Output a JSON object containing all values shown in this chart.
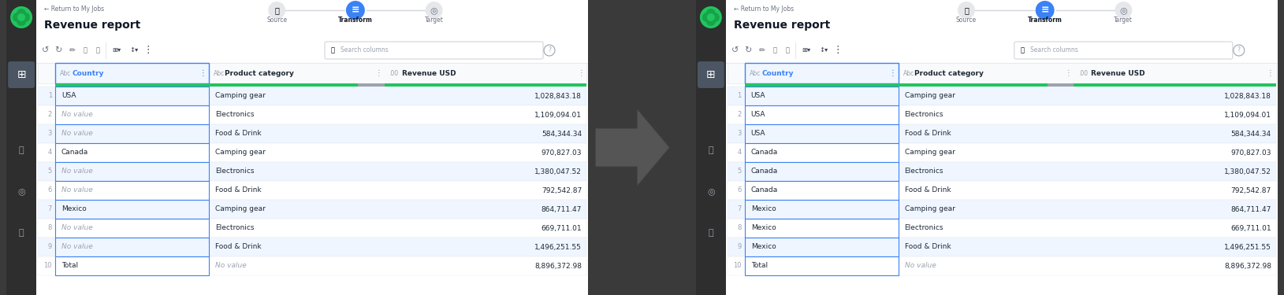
{
  "bg_color": "#3a3a3a",
  "panel_bg": "#ffffff",
  "sidebar_color": "#2e2e2e",
  "title": "Revenue report",
  "nav_label_return": "← Return to My Jobs",
  "tab_source": "Source",
  "tab_transform": "Transform",
  "tab_target": "Target",
  "search_placeholder": "Search columns",
  "col1_header": "Country",
  "col2_header": "Product category",
  "col3_header": "Revenue USD",
  "col1_type": "Abc",
  "col2_type": "Abc",
  "col3_type": ".00",
  "green_bar_color": "#22c55e",
  "gray_bar_color": "#9ca3af",
  "blue_header_color": "#3b82f6",
  "col_border_color": "#3b82f6",
  "row_alt_color": "#f0f6ff",
  "row_white": "#ffffff",
  "no_value_color": "#9ca3af",
  "text_color": "#1f2937",
  "num_color": "#1f2937",
  "sidebar_icon_color": "#9ca3af",
  "toolbar_color": "#374151",
  "search_border": "#d1d5db",
  "header_bg": "#f9fafb",
  "row_border_color": "#e5e7eb",
  "left_rows": [
    [
      "1",
      "USA",
      "Camping gear",
      "1,028,843.18"
    ],
    [
      "2",
      "No value",
      "Electronics",
      "1,109,094.01"
    ],
    [
      "3",
      "No value",
      "Food & Drink",
      "584,344.34"
    ],
    [
      "4",
      "Canada",
      "Camping gear",
      "970,827.03"
    ],
    [
      "5",
      "No value",
      "Electronics",
      "1,380,047.52"
    ],
    [
      "6",
      "No value",
      "Food & Drink",
      "792,542.87"
    ],
    [
      "7",
      "Mexico",
      "Camping gear",
      "864,711.47"
    ],
    [
      "8",
      "No value",
      "Electronics",
      "669,711.01"
    ],
    [
      "9",
      "No value",
      "Food & Drink",
      "1,496,251.55"
    ],
    [
      "10",
      "Total",
      "No value",
      "8,896,372.98"
    ]
  ],
  "right_rows": [
    [
      "1",
      "USA",
      "Camping gear",
      "1,028,843.18"
    ],
    [
      "2",
      "USA",
      "Electronics",
      "1,109,094.01"
    ],
    [
      "3",
      "USA",
      "Food & Drink",
      "584,344.34"
    ],
    [
      "4",
      "Canada",
      "Camping gear",
      "970,827.03"
    ],
    [
      "5",
      "Canada",
      "Electronics",
      "1,380,047.52"
    ],
    [
      "6",
      "Canada",
      "Food & Drink",
      "792,542.87"
    ],
    [
      "7",
      "Mexico",
      "Camping gear",
      "864,711.47"
    ],
    [
      "8",
      "Mexico",
      "Electronics",
      "669,711.01"
    ],
    [
      "9",
      "Mexico",
      "Food & Drink",
      "1,496,251.55"
    ],
    [
      "10",
      "Total",
      "No value",
      "8,896,372.98"
    ]
  ]
}
